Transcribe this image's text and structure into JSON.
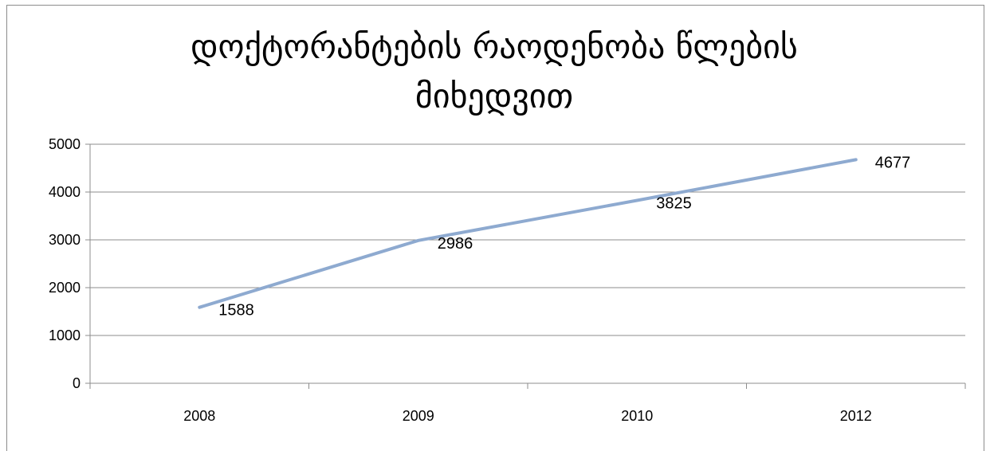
{
  "chart_data": {
    "type": "line",
    "title": "დოქტორანტების რაოდენობა წლების მიხედვით",
    "categories": [
      "2008",
      "2009",
      "2010",
      "2012"
    ],
    "series": [
      {
        "values": [
          1588,
          2986,
          3825,
          4677
        ]
      }
    ],
    "data_labels": [
      "1588",
      "2986",
      "3825",
      "4677"
    ],
    "ylim": [
      0,
      5000
    ],
    "yticks": [
      "0",
      "1000",
      "2000",
      "3000",
      "4000",
      "5000"
    ],
    "grid": true,
    "legend": "none",
    "colors": {
      "line": "#8eaad0",
      "grid": "#8c8c8c",
      "axis": "#8c8c8c"
    }
  }
}
